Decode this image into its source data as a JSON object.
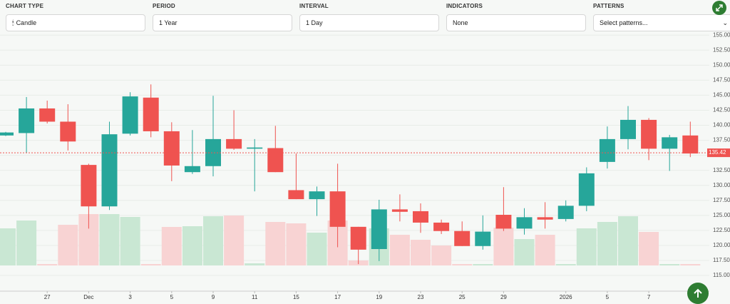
{
  "controls": [
    {
      "label": "CHART TYPE",
      "value": "Candle"
    },
    {
      "label": "PERIOD",
      "value": "1 Year"
    },
    {
      "label": "INTERVAL",
      "value": "1 Day"
    },
    {
      "label": "INDICATORS",
      "value": "None"
    },
    {
      "label": "PATTERNS",
      "value": "Select patterns..."
    }
  ],
  "chart_data": {
    "type": "candlestick",
    "categories": [
      null,
      null,
      "27",
      null,
      "Dec",
      null,
      "3",
      null,
      "5",
      null,
      "9",
      null,
      "11",
      null,
      "15",
      null,
      "17",
      null,
      "19",
      null,
      "23",
      null,
      "25",
      null,
      "29",
      null,
      null,
      "2026",
      null,
      "5",
      null,
      "7",
      null,
      null
    ],
    "open": [
      138.3,
      138.7,
      142.8,
      140.6,
      133.4,
      126.5,
      138.6,
      144.6,
      139.0,
      132.2,
      133.2,
      137.7,
      136.1,
      136.2,
      129.2,
      127.7,
      129.0,
      123.1,
      119.4,
      126.0,
      125.7,
      123.8,
      122.4,
      119.9,
      125.1,
      122.8,
      124.7,
      124.4,
      126.6,
      133.9,
      137.7,
      140.9,
      136.1,
      138.3
    ],
    "high": [
      138.9,
      144.7,
      144.1,
      143.5,
      133.6,
      140.6,
      145.5,
      146.8,
      140.5,
      139.2,
      144.9,
      142.5,
      137.7,
      139.9,
      135.3,
      129.8,
      133.6,
      123.1,
      127.6,
      128.5,
      127.0,
      124.3,
      124.0,
      125.0,
      129.7,
      126.2,
      127.2,
      127.5,
      133.0,
      139.8,
      143.2,
      141.2,
      138.4,
      140.6
    ],
    "low": [
      138.2,
      135.4,
      140.3,
      135.8,
      122.8,
      125.9,
      138.3,
      138.0,
      130.7,
      131.9,
      131.5,
      135.9,
      129.0,
      132.2,
      127.7,
      124.9,
      119.7,
      116.9,
      117.4,
      124.0,
      122.1,
      121.9,
      119.9,
      119.3,
      122.4,
      121.8,
      122.8,
      124.0,
      125.7,
      132.8,
      136.0,
      134.2,
      132.4,
      134.7
    ],
    "close": [
      138.8,
      142.8,
      140.6,
      137.3,
      126.5,
      138.5,
      144.8,
      139.0,
      133.3,
      133.2,
      137.7,
      136.1,
      136.3,
      132.2,
      127.7,
      129.0,
      123.1,
      119.3,
      126.0,
      125.6,
      123.8,
      122.4,
      119.9,
      122.3,
      122.8,
      124.7,
      124.3,
      126.6,
      132.0,
      137.7,
      140.9,
      136.1,
      138.0,
      135.3
    ],
    "volume": [
      52,
      63,
      2,
      57,
      72,
      72,
      68,
      2,
      54,
      55,
      69,
      70,
      3,
      61,
      59,
      46,
      63,
      7,
      52,
      43,
      36,
      28,
      2,
      2,
      53,
      37,
      43,
      2,
      52,
      61,
      69,
      47,
      2,
      2
    ],
    "up_color": "#26a69a",
    "down_color": "#ef5350",
    "volume_up_color": "#c9e7d3",
    "volume_down_color": "#f8d3d3",
    "last_price": 135.42,
    "ylim": [
      112.75,
      155.5
    ],
    "yticks": [
      {
        "value": 115,
        "label": "115.00"
      },
      {
        "value": 117.5,
        "label": "117.50"
      },
      {
        "value": 120,
        "label": "120.00"
      },
      {
        "value": 122.5,
        "label": "122.50"
      },
      {
        "value": 125,
        "label": "125.00"
      },
      {
        "value": 127.5,
        "label": "127.50"
      },
      {
        "value": 130,
        "label": "130.00"
      },
      {
        "value": 132.5,
        "label": "132.50"
      },
      {
        "value": 135,
        "label": "135.00"
      },
      {
        "value": 137.5,
        "label": "137.50"
      },
      {
        "value": 140,
        "label": "140.00"
      },
      {
        "value": 142.5,
        "label": "142.50"
      },
      {
        "value": 145,
        "label": "145.00"
      },
      {
        "value": 147.5,
        "label": "147.50"
      },
      {
        "value": 150,
        "label": "150.00"
      },
      {
        "value": 152.5,
        "label": "152.50"
      },
      {
        "value": 155,
        "label": "155.00"
      }
    ],
    "grid": true
  }
}
